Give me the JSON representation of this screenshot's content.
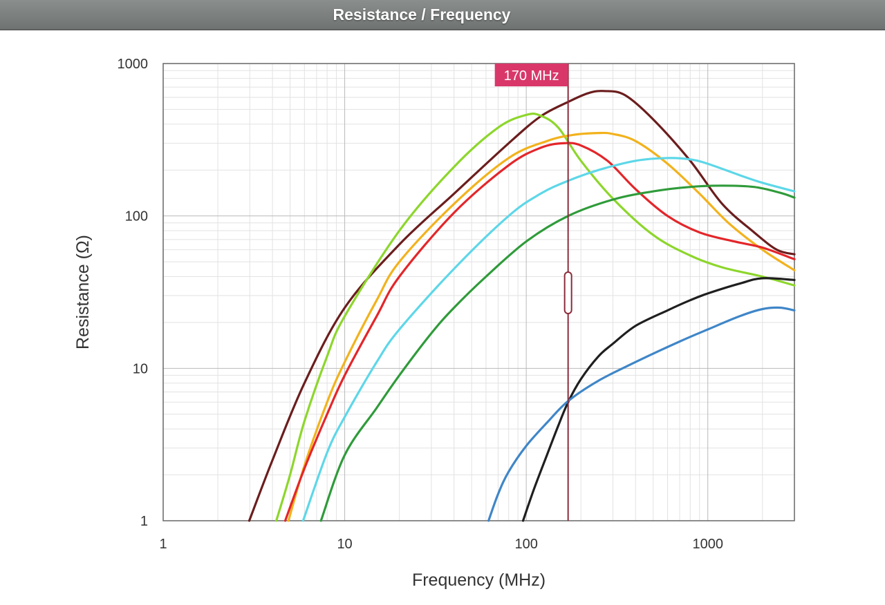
{
  "header": {
    "title": "Resistance / Frequency"
  },
  "chart_data": {
    "type": "line",
    "title": "Resistance / Frequency",
    "xlabel": "Frequency (MHz)",
    "ylabel": "Resistance (Ω)",
    "x_scale": "log",
    "y_scale": "log",
    "xlim": [
      1,
      3000
    ],
    "ylim": [
      1,
      1000
    ],
    "x_ticks": [
      1,
      10,
      100,
      1000
    ],
    "x_tick_labels": [
      "1",
      "10",
      "100",
      "1000"
    ],
    "y_ticks": [
      1,
      10,
      100,
      1000
    ],
    "y_tick_labels": [
      "1",
      "10",
      "100",
      "1000"
    ],
    "grid": true,
    "marker": {
      "x": 170,
      "label": "170 MHz",
      "color": "#d9376a",
      "line_color": "#8b2a3a"
    },
    "series": [
      {
        "color": "#6b1d1d",
        "points": [
          [
            2.98,
            1
          ],
          [
            4,
            2.5
          ],
          [
            6,
            8
          ],
          [
            10,
            25
          ],
          [
            20,
            65
          ],
          [
            40,
            140
          ],
          [
            80,
            300
          ],
          [
            120,
            450
          ],
          [
            170,
            560
          ],
          [
            220,
            640
          ],
          [
            270,
            660
          ],
          [
            350,
            620
          ],
          [
            500,
            430
          ],
          [
            800,
            230
          ],
          [
            1200,
            120
          ],
          [
            1800,
            78
          ],
          [
            2400,
            60
          ],
          [
            3000,
            56
          ]
        ]
      },
      {
        "color": "#8dd62c",
        "points": [
          [
            4.2,
            1
          ],
          [
            5,
            2
          ],
          [
            6,
            4.5
          ],
          [
            8,
            12
          ],
          [
            10,
            22
          ],
          [
            20,
            80
          ],
          [
            40,
            210
          ],
          [
            70,
            380
          ],
          [
            100,
            460
          ],
          [
            120,
            455
          ],
          [
            150,
            380
          ],
          [
            200,
            230
          ],
          [
            300,
            130
          ],
          [
            500,
            75
          ],
          [
            800,
            55
          ],
          [
            1200,
            46
          ],
          [
            2000,
            40
          ],
          [
            3000,
            35
          ]
        ]
      },
      {
        "color": "#f2b21c",
        "points": [
          [
            4.9,
            1
          ],
          [
            6,
            2.3
          ],
          [
            8,
            6
          ],
          [
            10,
            11
          ],
          [
            15,
            28
          ],
          [
            20,
            50
          ],
          [
            40,
            120
          ],
          [
            80,
            240
          ],
          [
            130,
            310
          ],
          [
            180,
            340
          ],
          [
            250,
            350
          ],
          [
            300,
            345
          ],
          [
            400,
            310
          ],
          [
            600,
            220
          ],
          [
            900,
            140
          ],
          [
            1300,
            90
          ],
          [
            2000,
            60
          ],
          [
            3000,
            44
          ]
        ]
      },
      {
        "color": "#e3262a",
        "points": [
          [
            4.7,
            1
          ],
          [
            6,
            2.2
          ],
          [
            8,
            5
          ],
          [
            10,
            9
          ],
          [
            15,
            22
          ],
          [
            20,
            40
          ],
          [
            40,
            105
          ],
          [
            80,
            215
          ],
          [
            120,
            280
          ],
          [
            160,
            300
          ],
          [
            200,
            290
          ],
          [
            280,
            230
          ],
          [
            400,
            150
          ],
          [
            600,
            100
          ],
          [
            900,
            78
          ],
          [
            1400,
            68
          ],
          [
            2000,
            62
          ],
          [
            3000,
            52
          ]
        ]
      },
      {
        "color": "#5dd7e8",
        "points": [
          [
            5.9,
            1
          ],
          [
            8,
            2.8
          ],
          [
            10,
            4.8
          ],
          [
            15,
            11
          ],
          [
            20,
            18
          ],
          [
            40,
            45
          ],
          [
            80,
            100
          ],
          [
            120,
            140
          ],
          [
            170,
            170
          ],
          [
            250,
            200
          ],
          [
            400,
            230
          ],
          [
            600,
            240
          ],
          [
            800,
            235
          ],
          [
            1000,
            220
          ],
          [
            1500,
            185
          ],
          [
            2000,
            165
          ],
          [
            3000,
            145
          ]
        ]
      },
      {
        "color": "#2f9b3a",
        "points": [
          [
            7.4,
            1
          ],
          [
            10,
            2.7
          ],
          [
            15,
            5.5
          ],
          [
            20,
            9
          ],
          [
            30,
            17
          ],
          [
            40,
            25
          ],
          [
            60,
            40
          ],
          [
            100,
            68
          ],
          [
            170,
            100
          ],
          [
            300,
            128
          ],
          [
            500,
            145
          ],
          [
            800,
            155
          ],
          [
            1200,
            158
          ],
          [
            1800,
            155
          ],
          [
            2500,
            142
          ],
          [
            3000,
            132
          ]
        ]
      },
      {
        "color": "#1f1f1f",
        "points": [
          [
            96,
            1
          ],
          [
            110,
            1.6
          ],
          [
            130,
            2.7
          ],
          [
            150,
            4.2
          ],
          [
            170,
            6
          ],
          [
            200,
            8.5
          ],
          [
            250,
            12
          ],
          [
            300,
            14.5
          ],
          [
            400,
            19
          ],
          [
            600,
            24
          ],
          [
            800,
            28
          ],
          [
            1000,
            31
          ],
          [
            1500,
            36
          ],
          [
            2000,
            39
          ],
          [
            3000,
            38
          ]
        ]
      },
      {
        "color": "#3f86c8",
        "points": [
          [
            62,
            1
          ],
          [
            70,
            1.5
          ],
          [
            80,
            2.1
          ],
          [
            100,
            3.1
          ],
          [
            130,
            4.4
          ],
          [
            170,
            6.1
          ],
          [
            250,
            8.3
          ],
          [
            400,
            11
          ],
          [
            700,
            15
          ],
          [
            1000,
            18
          ],
          [
            1500,
            22
          ],
          [
            2000,
            24.5
          ],
          [
            2500,
            25
          ],
          [
            3000,
            24
          ]
        ]
      }
    ]
  }
}
